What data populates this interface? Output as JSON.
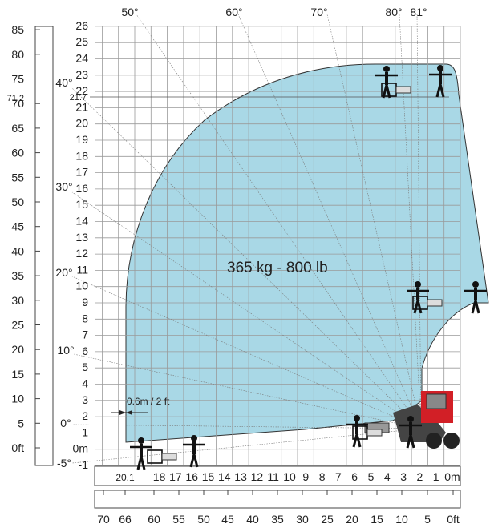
{
  "load_label": "365 kg - 800 lb",
  "clearance_label": "0.6m / 2 ft",
  "meter_y_ticks": [
    "-1",
    "0m",
    "1",
    "2",
    "3",
    "4",
    "5",
    "6",
    "7",
    "8",
    "9",
    "10",
    "11",
    "12",
    "13",
    "14",
    "15",
    "16",
    "17",
    "18",
    "19",
    "20",
    "21",
    "22",
    "23",
    "24",
    "25",
    "26"
  ],
  "meter_y_special": "21.7",
  "meter_x_ticks": [
    "0m",
    "1",
    "2",
    "3",
    "4",
    "5",
    "6",
    "7",
    "8",
    "9",
    "10",
    "11",
    "12",
    "13",
    "14",
    "15",
    "16",
    "17",
    "18"
  ],
  "meter_x_special": "20.1",
  "feet_y_ticks": [
    "0ft",
    "5",
    "10",
    "15",
    "20",
    "25",
    "30",
    "35",
    "40",
    "45",
    "50",
    "55",
    "60",
    "65",
    "70",
    "75",
    "80",
    "85"
  ],
  "feet_y_special": "71.2",
  "feet_x_ticks": [
    "0ft",
    "5",
    "10",
    "15",
    "20",
    "25",
    "30",
    "35",
    "40",
    "45",
    "50",
    "55",
    "60",
    "66",
    "70"
  ],
  "angle_labels_top": [
    "50°",
    "60°",
    "70°",
    "80°",
    "81°"
  ],
  "angle_labels_left": [
    "40°",
    "30°",
    "20°",
    "10°",
    "0°",
    "-5°"
  ],
  "colors": {
    "envelope": "#a9d8e6",
    "grid": "#9a9a9a",
    "figure": "#111111",
    "machine_red": "#d21f26"
  },
  "icons": [
    "operator-figure-icon",
    "basket-icon",
    "telehandler-icon"
  ]
}
